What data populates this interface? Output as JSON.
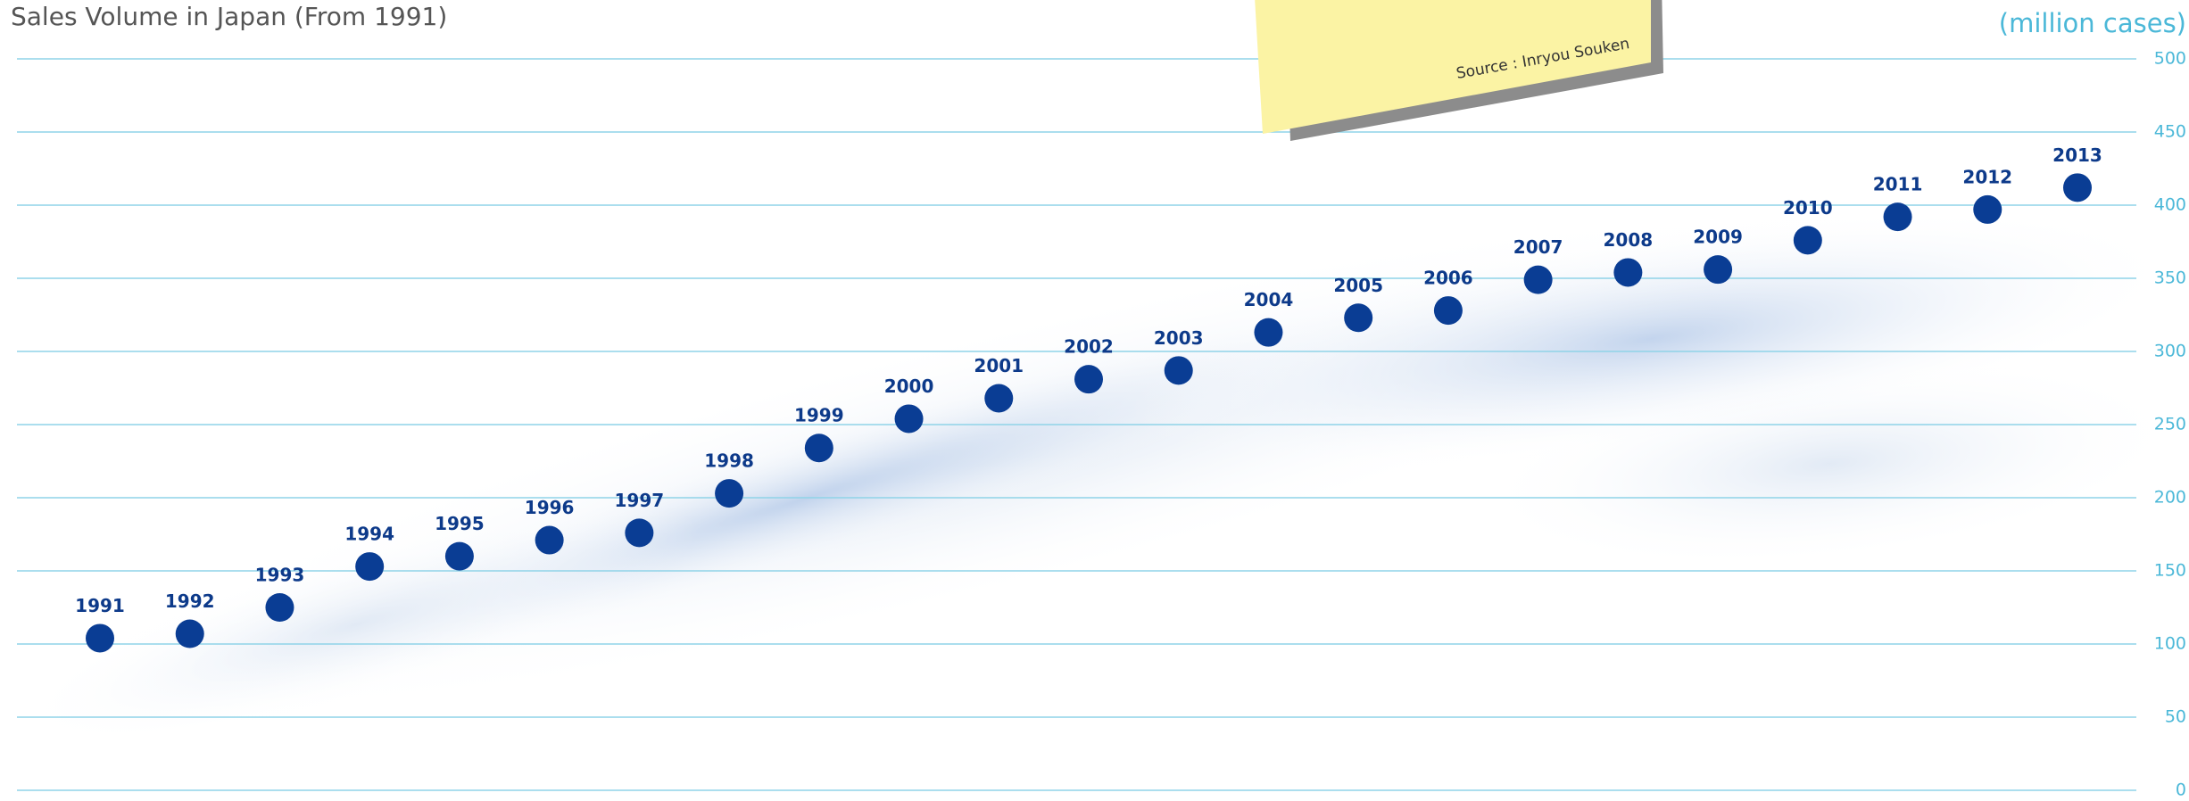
{
  "chart_data": {
    "type": "dot",
    "title": "Sales Volume in Japan (From 1991)",
    "y_axis_label": "(million cases)",
    "source": "Source : Inryou Souken",
    "categories": [
      "1991",
      "1992",
      "1993",
      "1994",
      "1995",
      "1996",
      "1997",
      "1998",
      "1999",
      "2000",
      "2001",
      "2002",
      "2003",
      "2004",
      "2005",
      "2006",
      "2007",
      "2008",
      "2009",
      "2010",
      "2011",
      "2012",
      "2013"
    ],
    "values": [
      104,
      107,
      125,
      153,
      160,
      171,
      176,
      203,
      234,
      254,
      268,
      281,
      287,
      313,
      323,
      328,
      349,
      354,
      356,
      376,
      392,
      397,
      412
    ],
    "color": "#0a3d94",
    "ylim": [
      0,
      500
    ],
    "yticks": [
      0,
      50,
      100,
      150,
      200,
      250,
      300,
      350,
      400,
      450,
      500
    ],
    "grid": true,
    "grid_color": "#8fd3e8"
  }
}
